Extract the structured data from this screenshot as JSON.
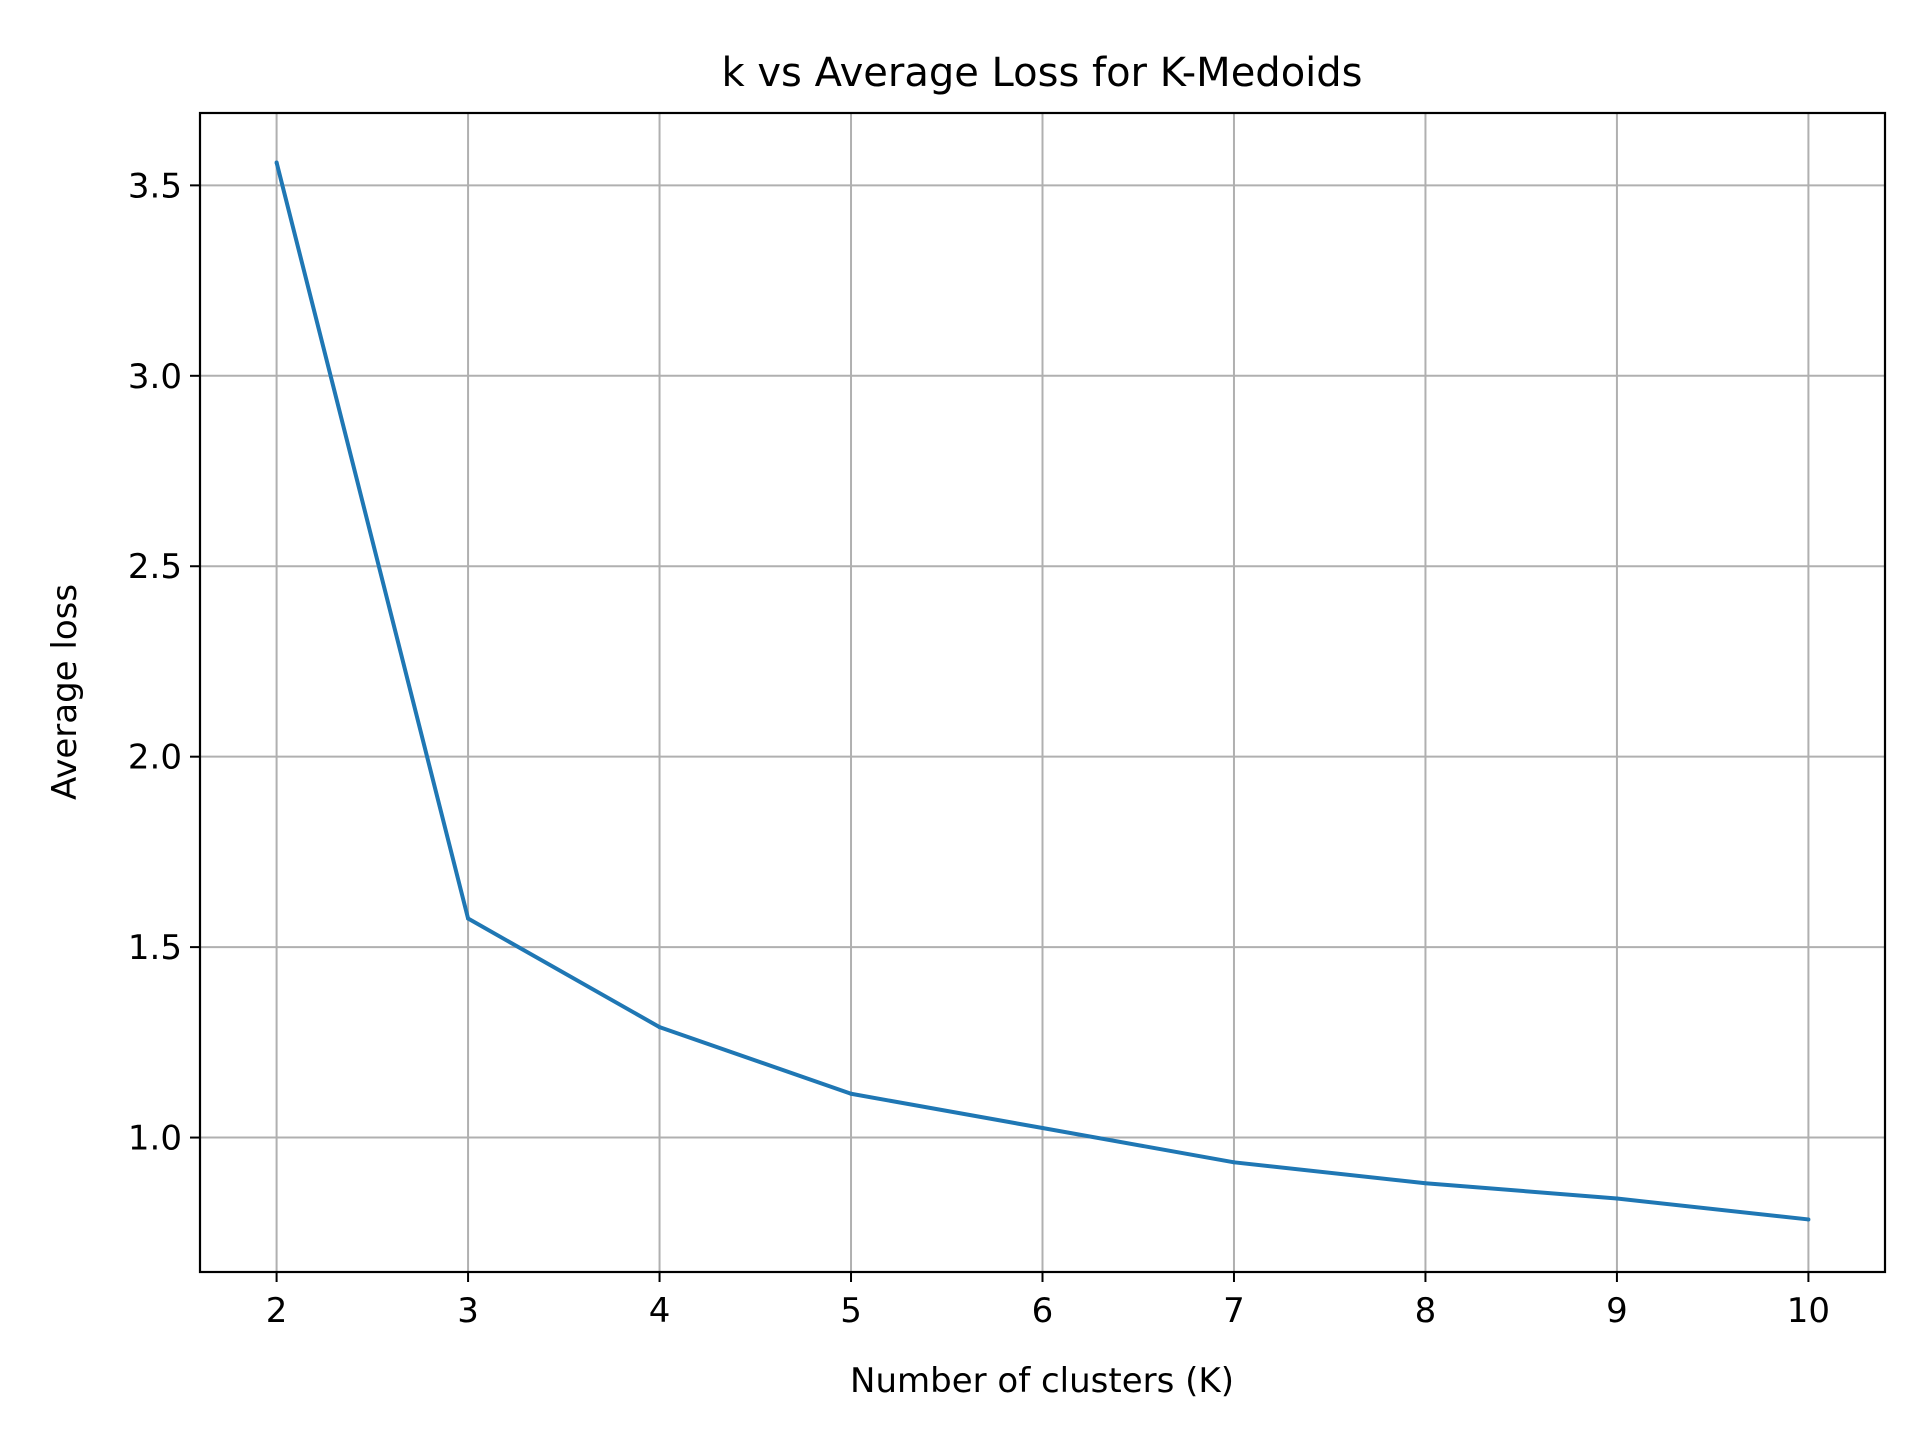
{
  "chart_data": {
    "type": "line",
    "title": "k vs Average Loss for K-Medoids",
    "xlabel": "Number of clusters (K)",
    "ylabel": "Average loss",
    "x": [
      2,
      3,
      4,
      5,
      6,
      7,
      8,
      9,
      10
    ],
    "series": [
      {
        "values": [
          3.56,
          1.575,
          1.29,
          1.115,
          1.025,
          0.935,
          0.88,
          0.84,
          0.785
        ],
        "color": "#1f77b4"
      }
    ],
    "xlim": [
      1.6,
      10.4
    ],
    "ylim": [
      0.647,
      3.69
    ],
    "x_ticks": [
      "2",
      "3",
      "4",
      "5",
      "6",
      "7",
      "8",
      "9",
      "10"
    ],
    "y_ticks": [
      "1.0",
      "1.5",
      "2.0",
      "2.5",
      "3.0",
      "3.5"
    ],
    "grid": true,
    "legend": "none"
  }
}
